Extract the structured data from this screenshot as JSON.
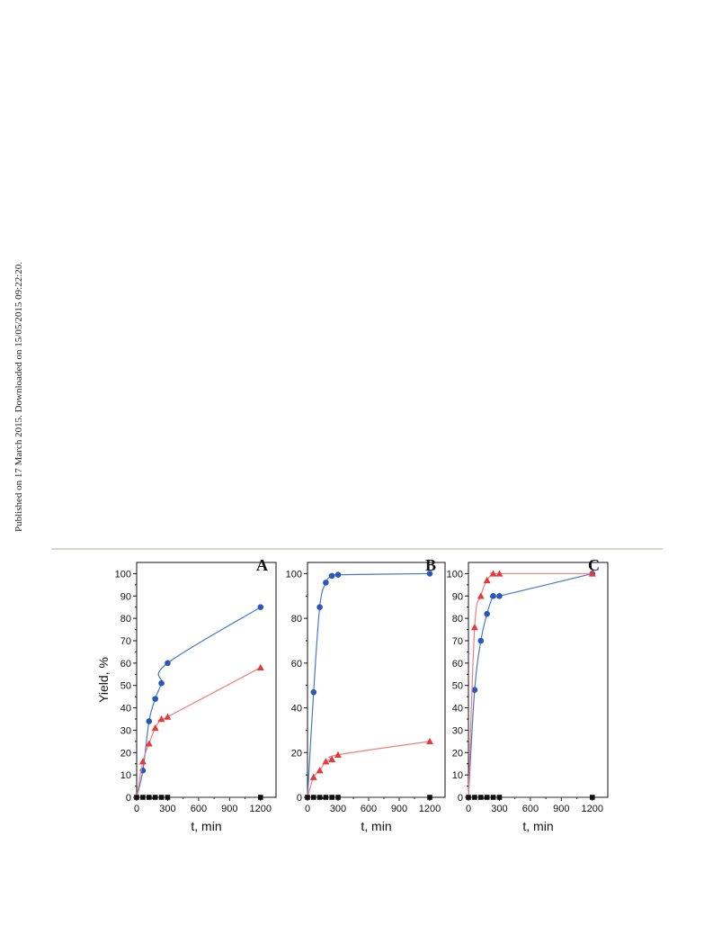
{
  "side_note": "Published on 17 March 2015. Downloaded on 15/05/2015 09:22:20.",
  "colors": {
    "blue": "#2b58b8",
    "red": "#e23b3b",
    "black": "#111111",
    "blue_line": "#4a78c8",
    "red_line": "#ee7f7f",
    "black_line": "#555555"
  },
  "chart_data": [
    {
      "type": "line",
      "panel_label": "A",
      "xlabel": "t, min",
      "ylabel": "Yield, %",
      "xlim": [
        0,
        1350
      ],
      "ylim": [
        0,
        105
      ],
      "x_ticks": [
        0,
        300,
        600,
        900,
        1200
      ],
      "y_ticks": [
        0,
        10,
        20,
        30,
        40,
        50,
        60,
        70,
        80,
        90,
        100
      ],
      "series": [
        {
          "color": "blue",
          "marker": "circle",
          "x": [
            0,
            60,
            120,
            180,
            240,
            300,
            1200
          ],
          "y": [
            0,
            12,
            34,
            44,
            51,
            60,
            85
          ]
        },
        {
          "color": "red",
          "marker": "triangle",
          "x": [
            0,
            60,
            120,
            180,
            240,
            300,
            1200
          ],
          "y": [
            0,
            16,
            24,
            31,
            35,
            36,
            58
          ]
        },
        {
          "color": "black",
          "marker": "square",
          "x": [
            0,
            60,
            120,
            180,
            240,
            300,
            1200
          ],
          "y": [
            0,
            0,
            0,
            0,
            0,
            0,
            0
          ]
        }
      ]
    },
    {
      "type": "line",
      "panel_label": "B",
      "xlabel": "t, min",
      "ylabel": "",
      "xlim": [
        0,
        1350
      ],
      "ylim": [
        0,
        105
      ],
      "x_ticks": [
        0,
        300,
        600,
        900,
        1200
      ],
      "y_ticks": [
        0,
        20,
        40,
        60,
        80,
        100
      ],
      "series": [
        {
          "color": "blue",
          "marker": "circle",
          "x": [
            0,
            60,
            120,
            180,
            240,
            300,
            1200
          ],
          "y": [
            0,
            47,
            85,
            96,
            99,
            99.5,
            100
          ]
        },
        {
          "color": "red",
          "marker": "triangle",
          "x": [
            0,
            60,
            120,
            180,
            240,
            300,
            1200
          ],
          "y": [
            0,
            9,
            12,
            16,
            17,
            19,
            25
          ]
        },
        {
          "color": "black",
          "marker": "square",
          "x": [
            0,
            60,
            120,
            180,
            240,
            300,
            1200
          ],
          "y": [
            0,
            0,
            0,
            0,
            0,
            0,
            0
          ]
        }
      ]
    },
    {
      "type": "line",
      "panel_label": "C",
      "xlabel": "t, min",
      "ylabel": "",
      "xlim": [
        0,
        1350
      ],
      "ylim": [
        0,
        105
      ],
      "x_ticks": [
        0,
        300,
        600,
        900,
        1200
      ],
      "y_ticks": [
        0,
        10,
        20,
        30,
        40,
        50,
        60,
        70,
        80,
        90,
        100
      ],
      "series": [
        {
          "color": "blue",
          "marker": "circle",
          "x": [
            0,
            60,
            120,
            180,
            240,
            300,
            1200
          ],
          "y": [
            0,
            48,
            70,
            82,
            90,
            90,
            100
          ]
        },
        {
          "color": "red",
          "marker": "triangle",
          "x": [
            0,
            60,
            120,
            180,
            240,
            300,
            1200
          ],
          "y": [
            0,
            76,
            90,
            97,
            100,
            100,
            100
          ]
        },
        {
          "color": "black",
          "marker": "square",
          "x": [
            0,
            60,
            120,
            180,
            240,
            300,
            1200
          ],
          "y": [
            0,
            0,
            0,
            0,
            0,
            0,
            0
          ]
        }
      ]
    }
  ]
}
